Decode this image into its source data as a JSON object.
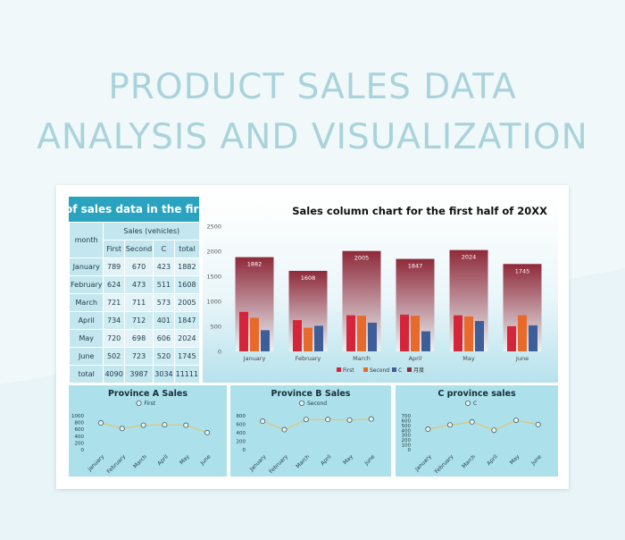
{
  "page": {
    "title_line1": "PRODUCT SALES DATA",
    "title_line2": "ANALYSIS AND VISUALIZATION"
  },
  "table": {
    "title": "of sales data in the first ha",
    "month_header": "month",
    "group_header": "Sales (vehicles)",
    "columns": [
      "First",
      "Second",
      "C",
      "total"
    ],
    "rows": [
      {
        "month": "January",
        "first": "789",
        "second": "670",
        "c": "423",
        "total": "1882"
      },
      {
        "month": "February",
        "first": "624",
        "second": "473",
        "c": "511",
        "total": "1608"
      },
      {
        "month": "March",
        "first": "721",
        "second": "711",
        "c": "573",
        "total": "2005"
      },
      {
        "month": "April",
        "first": "734",
        "second": "712",
        "c": "401",
        "total": "1847"
      },
      {
        "month": "May",
        "first": "720",
        "second": "698",
        "c": "606",
        "total": "2024"
      },
      {
        "month": "June",
        "first": "502",
        "second": "723",
        "c": "520",
        "total": "1745"
      }
    ],
    "total_row": {
      "month": "total",
      "first": "4090",
      "second": "3987",
      "c": "3034",
      "total": "11111"
    }
  },
  "colors": {
    "first": "#d5253a",
    "second": "#e86a2a",
    "c": "#3e5e9a",
    "total_top": "#8f2a3a",
    "total_bottom": "#eaf3f6",
    "line": "#e9c25a",
    "panel": "#ace0ea",
    "table_header": "#2aa3c0"
  },
  "chart_data": [
    {
      "type": "bar",
      "title": "Sales column chart for the first half of 20XX",
      "categories": [
        "January",
        "February",
        "March",
        "April",
        "May",
        "June"
      ],
      "series": [
        {
          "name": "First",
          "values": [
            789,
            624,
            721,
            734,
            720,
            502
          ]
        },
        {
          "name": "Second",
          "values": [
            670,
            473,
            711,
            712,
            698,
            723
          ]
        },
        {
          "name": "C",
          "values": [
            423,
            511,
            573,
            401,
            606,
            520
          ]
        },
        {
          "name": "月度",
          "values": [
            1882,
            1608,
            2005,
            1847,
            2024,
            1745
          ]
        }
      ],
      "ylim": [
        0,
        2500
      ],
      "yticks": [
        "0",
        "500",
        "1000",
        "1500",
        "2000",
        "2500"
      ],
      "legend_position": "bottom",
      "data_labels_on": "月度"
    },
    {
      "type": "line",
      "title": "Province A Sales",
      "categories": [
        "January",
        "February",
        "March",
        "April",
        "May",
        "June"
      ],
      "series": [
        {
          "name": "First",
          "values": [
            789,
            624,
            721,
            734,
            720,
            502
          ]
        }
      ],
      "ylim": [
        0,
        1000
      ],
      "yticks": [
        "0",
        "200",
        "400",
        "600",
        "800",
        "1000"
      ],
      "legend_position": "top"
    },
    {
      "type": "line",
      "title": "Province B Sales",
      "categories": [
        "January",
        "February",
        "March",
        "April",
        "May",
        "June"
      ],
      "series": [
        {
          "name": "Second",
          "values": [
            670,
            473,
            711,
            712,
            698,
            723
          ]
        }
      ],
      "ylim": [
        0,
        800
      ],
      "yticks": [
        "0",
        "200",
        "400",
        "600",
        "800"
      ],
      "legend_position": "top"
    },
    {
      "type": "line",
      "title": "C province sales",
      "categories": [
        "January",
        "February",
        "March",
        "April",
        "May",
        "June"
      ],
      "series": [
        {
          "name": "C",
          "values": [
            423,
            511,
            573,
            401,
            606,
            520
          ]
        }
      ],
      "ylim": [
        0,
        700
      ],
      "yticks": [
        "0",
        "100",
        "200",
        "300",
        "400",
        "500",
        "600",
        "700"
      ],
      "legend_position": "top"
    }
  ]
}
